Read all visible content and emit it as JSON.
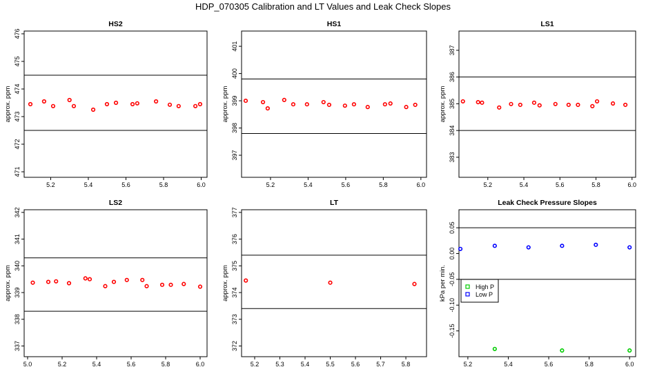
{
  "title": "HDP_070305  Calibration and LT Values and Leak Check Slopes",
  "chart_data": [
    {
      "type": "scatter",
      "title": "HS2",
      "xlabel": "",
      "ylabel": "approx. ppm",
      "xlim": [
        5.059,
        6.031
      ],
      "ylim": [
        470.8,
        476.1
      ],
      "xticks": [
        5.2,
        5.4,
        5.6,
        5.8,
        6.0
      ],
      "xtick_labels": [
        "5.2",
        "5.4",
        "5.6",
        "5.8",
        "6.0"
      ],
      "yticks": [
        471,
        472,
        473,
        474,
        475,
        476
      ],
      "ytick_labels": [
        "471",
        "472",
        "473",
        "474",
        "475",
        "476"
      ],
      "hlines": [
        474.5,
        472.5
      ],
      "series": [
        {
          "name": "HS2",
          "color": "#ff0000",
          "x": [
            5.092,
            5.165,
            5.213,
            5.3,
            5.323,
            5.426,
            5.499,
            5.547,
            5.635,
            5.66,
            5.76,
            5.833,
            5.88,
            5.969,
            5.994
          ],
          "y": [
            473.45,
            473.55,
            473.38,
            473.6,
            473.38,
            473.25,
            473.45,
            473.5,
            473.45,
            473.48,
            473.55,
            473.43,
            473.38,
            473.38,
            473.45
          ]
        }
      ]
    },
    {
      "type": "scatter",
      "title": "HS1",
      "xlabel": "",
      "ylabel": "approx. ppm",
      "xlim": [
        5.046,
        6.03
      ],
      "ylim": [
        396.19,
        401.56
      ],
      "xticks": [
        5.2,
        5.4,
        5.6,
        5.8,
        6.0
      ],
      "xtick_labels": [
        "5.2",
        "5.4",
        "5.6",
        "5.8",
        "6.0"
      ],
      "yticks": [
        397,
        398,
        399,
        400,
        401
      ],
      "ytick_labels": [
        "397",
        "398",
        "399",
        "400",
        "401"
      ],
      "hlines": [
        399.8,
        397.8
      ],
      "series": [
        {
          "name": "HS1",
          "color": "#ff0000",
          "x": [
            5.068,
            5.16,
            5.185,
            5.273,
            5.321,
            5.394,
            5.482,
            5.512,
            5.596,
            5.644,
            5.717,
            5.809,
            5.838,
            5.922,
            5.97
          ],
          "y": [
            399.0,
            398.95,
            398.72,
            399.03,
            398.87,
            398.87,
            398.95,
            398.85,
            398.82,
            398.87,
            398.77,
            398.87,
            398.9,
            398.77,
            398.85
          ]
        }
      ]
    },
    {
      "type": "scatter",
      "title": "LS1",
      "xlabel": "",
      "ylabel": "approx. ppm",
      "xlim": [
        5.04,
        6.02
      ],
      "ylim": [
        382.25,
        387.72
      ],
      "xticks": [
        5.2,
        5.4,
        5.6,
        5.8,
        6.0
      ],
      "xtick_labels": [
        "5.2",
        "5.4",
        "5.6",
        "5.8",
        "6.0"
      ],
      "yticks": [
        383,
        384,
        385,
        386,
        387
      ],
      "ytick_labels": [
        "383",
        "384",
        "385",
        "386",
        "387"
      ],
      "hlines": [
        386,
        384
      ],
      "series": [
        {
          "name": "LS1",
          "color": "#ff0000",
          "x": [
            5.062,
            5.146,
            5.168,
            5.263,
            5.329,
            5.38,
            5.457,
            5.487,
            5.575,
            5.648,
            5.7,
            5.78,
            5.806,
            5.894,
            5.963
          ],
          "y": [
            385.09,
            385.06,
            385.04,
            384.86,
            384.99,
            384.96,
            385.04,
            384.94,
            384.99,
            384.96,
            384.96,
            384.91,
            385.09,
            385.01,
            384.96
          ]
        }
      ]
    },
    {
      "type": "scatter",
      "title": "LS2",
      "xlabel": "",
      "ylabel": "approx. ppm",
      "xlim": [
        4.98,
        6.04
      ],
      "ylim": [
        336.6,
        342.1
      ],
      "xticks": [
        5.0,
        5.2,
        5.4,
        5.6,
        5.8,
        6.0
      ],
      "xtick_labels": [
        "5.0",
        "5.2",
        "5.4",
        "5.6",
        "5.8",
        "6.0"
      ],
      "yticks": [
        337,
        338,
        339,
        340,
        341,
        342
      ],
      "ytick_labels": [
        "337",
        "338",
        "339",
        "340",
        "341",
        "342"
      ],
      "hlines": [
        340.3,
        338.3
      ],
      "series": [
        {
          "name": "LS2",
          "color": "#ff0000",
          "x": [
            5.03,
            5.12,
            5.165,
            5.24,
            5.335,
            5.36,
            5.45,
            5.5,
            5.575,
            5.665,
            5.69,
            5.78,
            5.83,
            5.905,
            6.0
          ],
          "y": [
            339.37,
            339.4,
            339.42,
            339.35,
            339.53,
            339.5,
            339.24,
            339.4,
            339.47,
            339.47,
            339.24,
            339.29,
            339.29,
            339.32,
            339.22
          ]
        }
      ]
    },
    {
      "type": "scatter",
      "title": "LT",
      "xlabel": "",
      "ylabel": "approx. ppm",
      "xlim": [
        5.148,
        5.882
      ],
      "ylim": [
        371.6,
        377.1
      ],
      "xticks": [
        5.2,
        5.3,
        5.4,
        5.5,
        5.6,
        5.7,
        5.8
      ],
      "xtick_labels": [
        "5.2",
        "5.3",
        "5.4",
        "5.5",
        "5.6",
        "5.7",
        "5.8"
      ],
      "yticks": [
        372,
        373,
        374,
        375,
        376,
        377
      ],
      "ytick_labels": [
        "372",
        "373",
        "374",
        "375",
        "376",
        "377"
      ],
      "hlines": [
        375.4,
        373.4
      ],
      "series": [
        {
          "name": "LT",
          "color": "#ff0000",
          "x": [
            5.165,
            5.5,
            5.834
          ],
          "y": [
            374.45,
            374.37,
            374.32
          ]
        }
      ]
    },
    {
      "type": "scatter",
      "title": "Leak Check Pressure Slopes",
      "xlabel": "",
      "ylabel": "kPa per min.",
      "xlim": [
        5.156,
        6.03
      ],
      "ylim": [
        -0.2,
        0.085
      ],
      "xticks": [
        5.2,
        5.4,
        5.6,
        5.8,
        6.0
      ],
      "xtick_labels": [
        "5.2",
        "5.4",
        "5.6",
        "5.8",
        "6.0"
      ],
      "yticks": [
        -0.15,
        -0.1,
        -0.05,
        0.0,
        0.05
      ],
      "ytick_labels": [
        "-0.15",
        "-0.10",
        "-0.05",
        "0.00",
        "0.05"
      ],
      "hlines": [
        0.05,
        -0.05
      ],
      "legend": {
        "placement": "middle-left",
        "entries": [
          {
            "label": "High P",
            "color": "#00cc00"
          },
          {
            "label": "Low P",
            "color": "#0000ff"
          }
        ]
      },
      "series": [
        {
          "name": "High P",
          "color": "#00cc00",
          "x": [
            5.333,
            5.666,
            6.0
          ],
          "y": [
            -0.185,
            -0.188,
            -0.188
          ]
        },
        {
          "name": "Low P",
          "color": "#0000ff",
          "x": [
            5.163,
            5.333,
            5.5,
            5.666,
            5.833,
            6.0
          ],
          "y": [
            0.009,
            0.015,
            0.012,
            0.015,
            0.017,
            0.012
          ]
        }
      ]
    }
  ]
}
